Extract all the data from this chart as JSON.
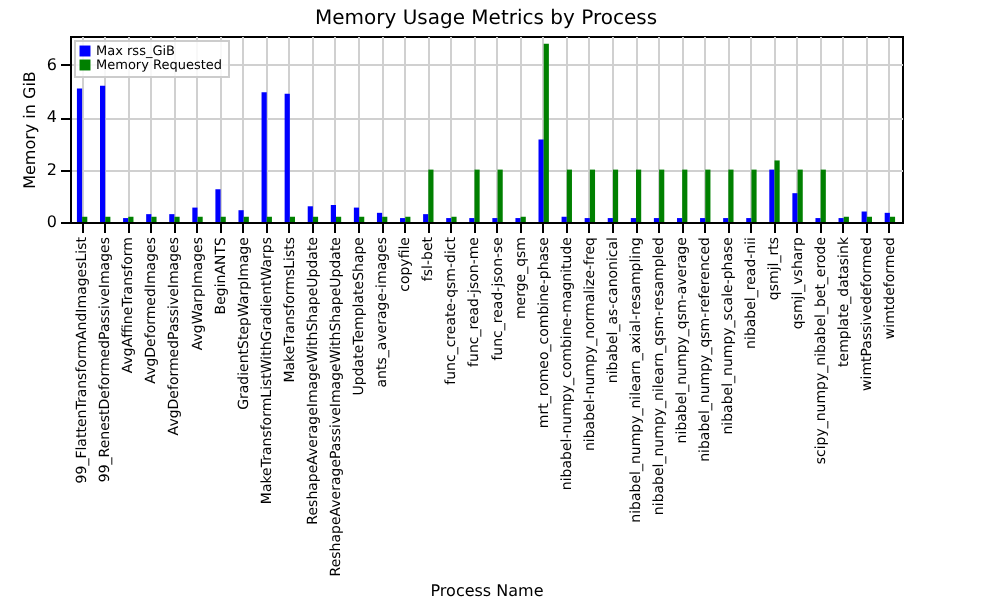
{
  "chart_data": {
    "type": "bar",
    "title": "Memory Usage Metrics by Process",
    "xlabel": "Process Name",
    "ylabel": "Memory in GiB",
    "categories": [
      "99_FlattenTransformAndImagesList",
      "99_RenestDeformedPassiveImages",
      "AvgAffineTransform",
      "AvgDeformedImages",
      "AvgDeformedPassiveImages",
      "AvgWarpImages",
      "BeginANTS",
      "GradientStepWarpImage",
      "MakeTransformListWithGradientWarps",
      "MakeTransformsLists",
      "ReshapeAverageImageWithShapeUpdate",
      "ReshapeAveragePassiveImageWithShapeUpdate",
      "UpdateTemplateShape",
      "ants_average-images",
      "copyfile",
      "fsl-bet",
      "func_create-qsm-dict",
      "func_read-json-me",
      "func_read-json-se",
      "merge_qsm",
      "mrt_romeo_combine-phase",
      "nibabel-numpy_combine-magnitude",
      "nibabel-numpy_normalize-freq",
      "nibabel_as-canonical",
      "nibabel_numpy_nilearn_axial-resampling",
      "nibabel_numpy_nilearn_qsm-resampled",
      "nibabel_numpy_qsm-average",
      "nibabel_numpy_qsm-referenced",
      "nibabel_numpy_scale-phase",
      "nibabel_read-nii",
      "qsmjl_rts",
      "qsmjl_vsharp",
      "scipy_numpy_nibabel_bet_erode",
      "template_datasink",
      "wimtPassivedeformed",
      "wimtdeformed"
    ],
    "series": [
      {
        "name": "Max rss_GiB",
        "color": "#0000ff",
        "values": [
          5.1,
          5.2,
          0.15,
          0.3,
          0.3,
          0.55,
          1.25,
          0.45,
          4.95,
          4.9,
          0.6,
          0.65,
          0.55,
          0.35,
          0.15,
          0.3,
          0.15,
          0.15,
          0.15,
          0.15,
          3.15,
          0.2,
          0.15,
          0.15,
          0.15,
          0.15,
          0.15,
          0.15,
          0.15,
          0.15,
          2.0,
          1.1,
          0.15,
          0.15,
          0.4,
          0.35
        ]
      },
      {
        "name": "Memory Requested",
        "color": "#008000",
        "values": [
          0.2,
          0.2,
          0.2,
          0.2,
          0.2,
          0.2,
          0.2,
          0.2,
          0.2,
          0.2,
          0.2,
          0.2,
          0.2,
          0.2,
          0.2,
          2.0,
          0.2,
          2.0,
          2.0,
          0.2,
          6.8,
          2.0,
          2.0,
          2.0,
          2.0,
          2.0,
          2.0,
          2.0,
          2.0,
          2.0,
          2.35,
          2.0,
          2.0,
          0.2,
          0.2,
          0.2
        ]
      }
    ],
    "ylim": [
      0,
      7.1
    ],
    "yticks": [
      0,
      2,
      4,
      6
    ],
    "grid": true,
    "legend": "top left"
  }
}
